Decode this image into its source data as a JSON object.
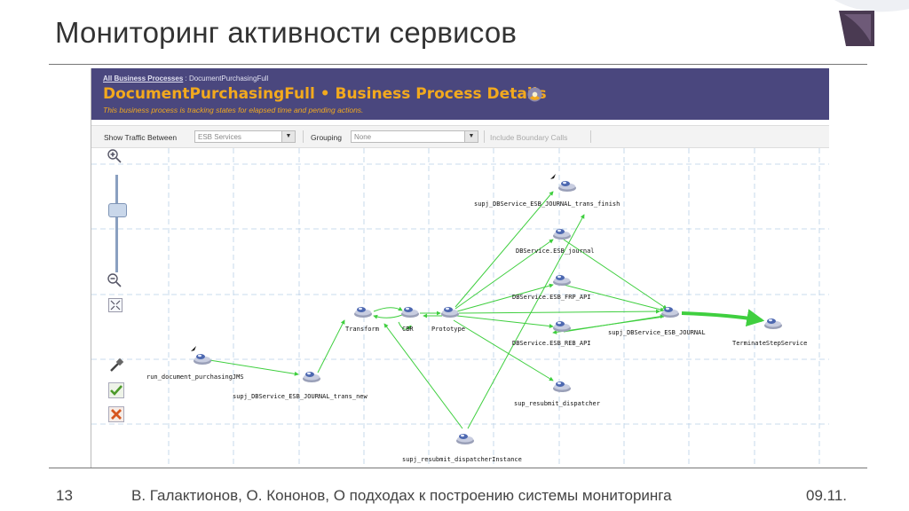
{
  "slide": {
    "title": "Мониторинг активности сервисов",
    "page_number": "13",
    "footer": "В. Галактионов, О. Кононов, О подходах к построению системы мониторинга",
    "date": "09.11."
  },
  "app": {
    "breadcrumb_link": "All Business Processes",
    "breadcrumb_sep": " : ",
    "breadcrumb_current": "DocumentPurchasingFull",
    "page_title": "DocumentPurchasingFull • Business Process Details",
    "page_subtitle": "This business process is tracking states for elapsed time and pending actions.",
    "header_color": "#4a477e",
    "title_color": "#f2a91e"
  },
  "toolbar": {
    "show_traffic_label": "Show Traffic Between",
    "traffic_value": "ESB Services",
    "grouping_label": "Grouping",
    "grouping_value": "None",
    "include_boundary": "Include Boundary Calls"
  },
  "controls": [
    "zoom-in-icon",
    "zoom-slider",
    "zoom-out-icon",
    "fit-icon",
    "tool-icon",
    "check-icon",
    "delete-icon"
  ],
  "nodes": [
    {
      "id": "finish",
      "label": "supj_DBService_ESB_JOURNAL_trans_finish"
    },
    {
      "id": "journal",
      "label": "DBService.ESB_journal"
    },
    {
      "id": "frp",
      "label": "DBService.ESB_FRP_API"
    },
    {
      "id": "transform",
      "label": "Transform"
    },
    {
      "id": "cbr",
      "label": "CBR"
    },
    {
      "id": "prototype",
      "label": "Prototype"
    },
    {
      "id": "esbjournal",
      "label": "supj_DBService_ESB_JOURNAL"
    },
    {
      "id": "terminate",
      "label": "TerminateStepService"
    },
    {
      "id": "reb",
      "label": "DBService.ESB_REB_API"
    },
    {
      "id": "jms",
      "label": "run_document_purchasingJMS"
    },
    {
      "id": "transnew",
      "label": "supj_DBService_ESB_JOURNAL_trans_new"
    },
    {
      "id": "resubmit",
      "label": "sup_resubmit_dispatcher"
    },
    {
      "id": "resubmitinst",
      "label": "supj_resubmit_dispatcherInstance"
    }
  ]
}
